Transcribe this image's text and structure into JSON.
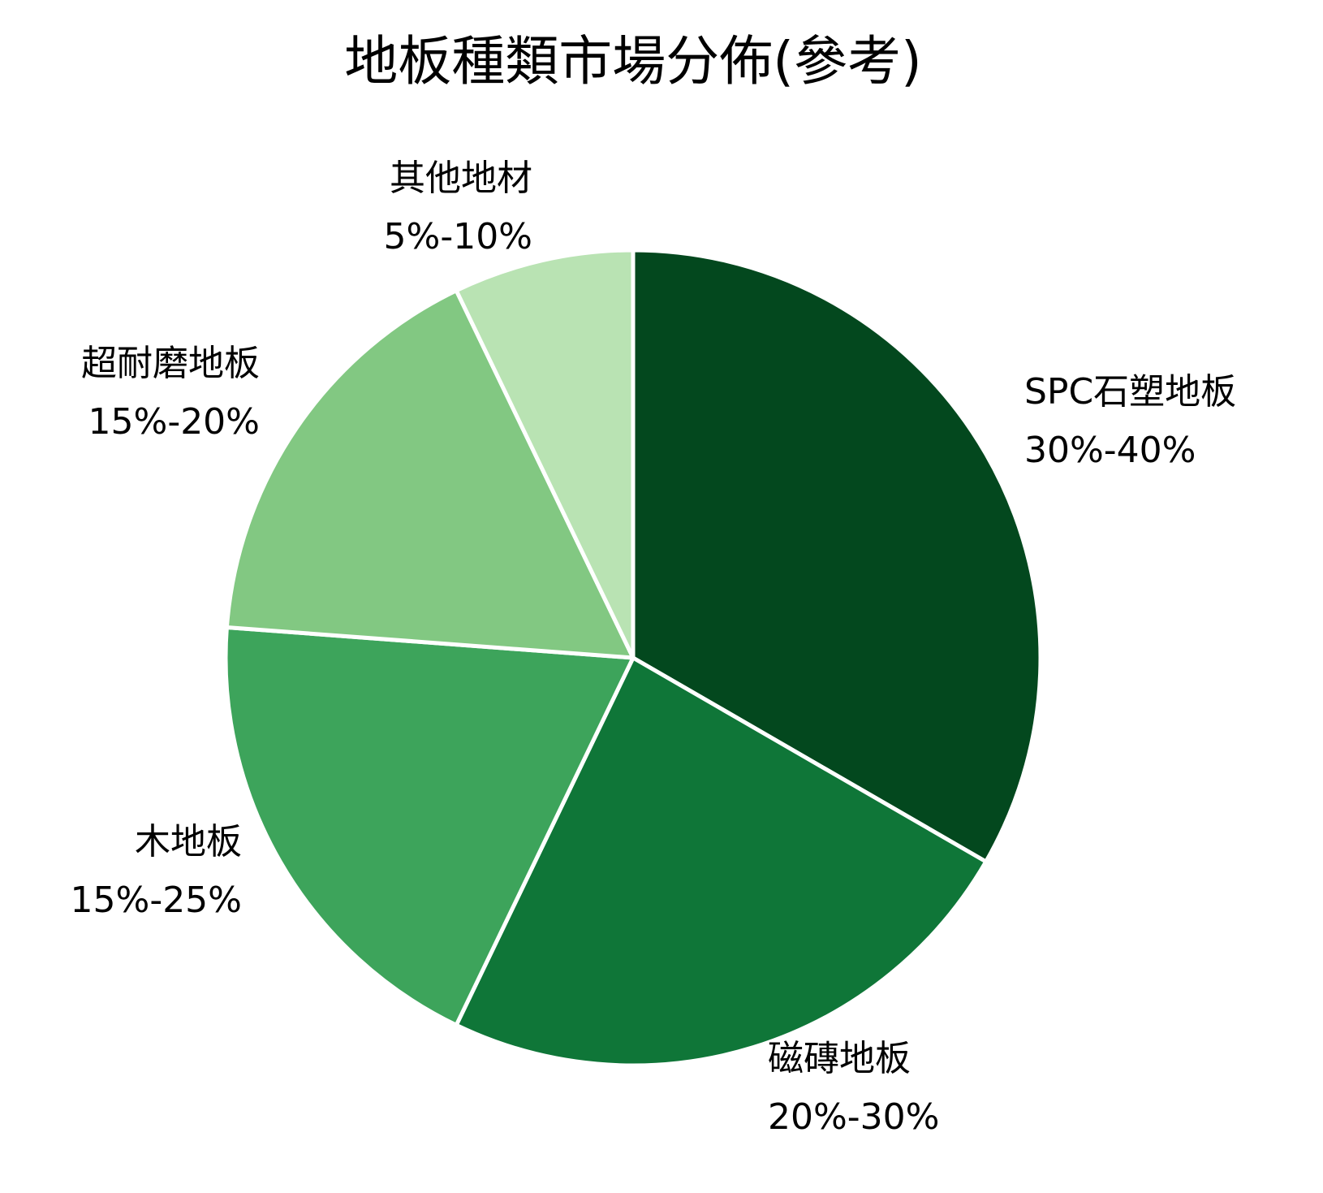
{
  "chart_data": {
    "type": "pie",
    "title": "地板種類市場分佈(參考)",
    "start_angle_deg": 0,
    "direction": "clockwise",
    "slices": [
      {
        "name": "SPC石塑地板",
        "range_label": "30%-40%",
        "value": 35,
        "color": "#03481e"
      },
      {
        "name": "磁磚地板",
        "range_label": "20%-30%",
        "value": 25,
        "color": "#0f7638"
      },
      {
        "name": "木地板",
        "range_label": "15%-25%",
        "value": 20,
        "color": "#3da45b"
      },
      {
        "name": "超耐磨地板",
        "range_label": "15%-20%",
        "value": 17.5,
        "color": "#82c882"
      },
      {
        "name": "其他地材",
        "range_label": "5%-10%",
        "value": 7.5,
        "color": "#b9e3b3"
      }
    ],
    "legend": "none"
  }
}
